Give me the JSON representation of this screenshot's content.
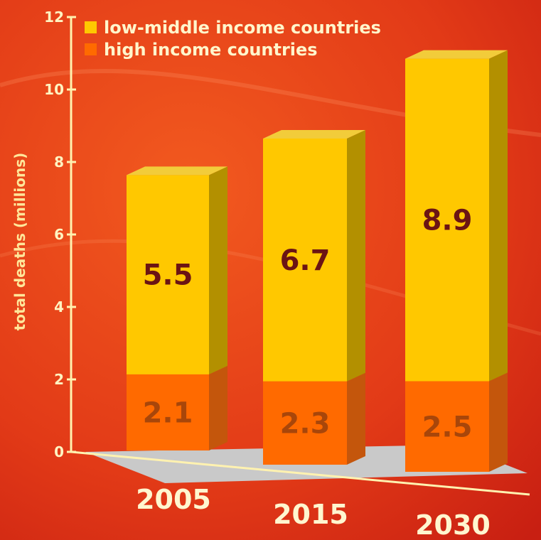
{
  "chart_data": {
    "type": "bar",
    "stacked": true,
    "categories": [
      "2005",
      "2015",
      "2030"
    ],
    "series": [
      {
        "name": "high income countries",
        "values": [
          2.1,
          2.3,
          2.5
        ],
        "color": "#ff6a00"
      },
      {
        "name": "low-middle income countries",
        "values": [
          5.5,
          6.7,
          8.9
        ],
        "color": "#ffc800"
      }
    ],
    "ylabel": "total deaths (millions)",
    "ylim": [
      0,
      12
    ],
    "yticks": [
      "0",
      "2",
      "4",
      "6",
      "8",
      "10",
      "12"
    ],
    "legend_position": "top-left",
    "colors": {
      "background": "#e8401a",
      "floor": "#c8c8c8",
      "axis": "#fff2b0"
    }
  }
}
